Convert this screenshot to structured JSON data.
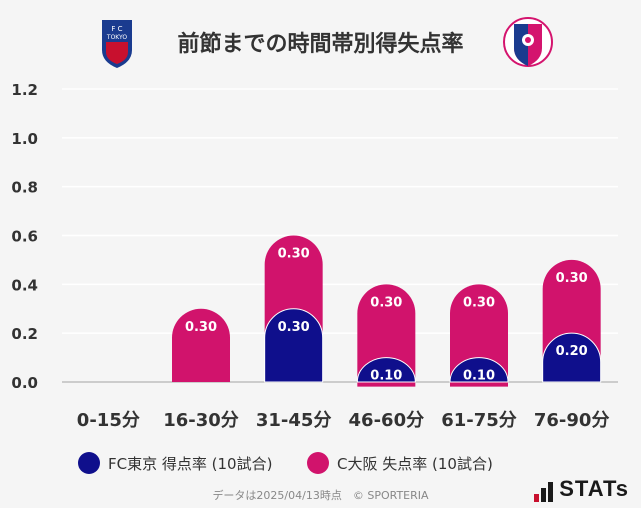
{
  "title": "前節までの時間帯別得失点率",
  "legend": {
    "series1": "FC東京 得点率 (10試合)",
    "series2": "C大阪 失点率 (10試合)"
  },
  "footer": "データは2025/04/13時点　© SPORTERIA",
  "brand": "STATs",
  "team_crests": {
    "left": {
      "name": "FC東京",
      "text": "F C TOKYO",
      "colors": [
        "#1a3b8f",
        "#c8102e"
      ]
    },
    "right": {
      "name": "C大阪",
      "colors": [
        "#d4146e",
        "#1a3b8f"
      ]
    }
  },
  "colors": {
    "series1": "#0f0f8c",
    "series2": "#d1136c",
    "grid": "#ffffff",
    "axis": "#cccccc"
  },
  "chart_data": {
    "type": "bar",
    "stacked": true,
    "categories": [
      "0-15分",
      "16-30分",
      "31-45分",
      "46-60分",
      "61-75分",
      "76-90分"
    ],
    "series": [
      {
        "name": "FC東京 得点率 (10試合)",
        "values": [
          0,
          0,
          0.3,
          0.1,
          0.1,
          0.2
        ]
      },
      {
        "name": "C大阪 失点率 (10試合)",
        "values": [
          0,
          0.3,
          0.3,
          0.3,
          0.3,
          0.3
        ]
      }
    ],
    "yticks": [
      "0.0",
      "0.2",
      "0.4",
      "0.6",
      "0.8",
      "1.0",
      "1.2"
    ],
    "ylim": [
      0,
      1.2
    ],
    "grid": true,
    "legend_position": "bottom"
  }
}
